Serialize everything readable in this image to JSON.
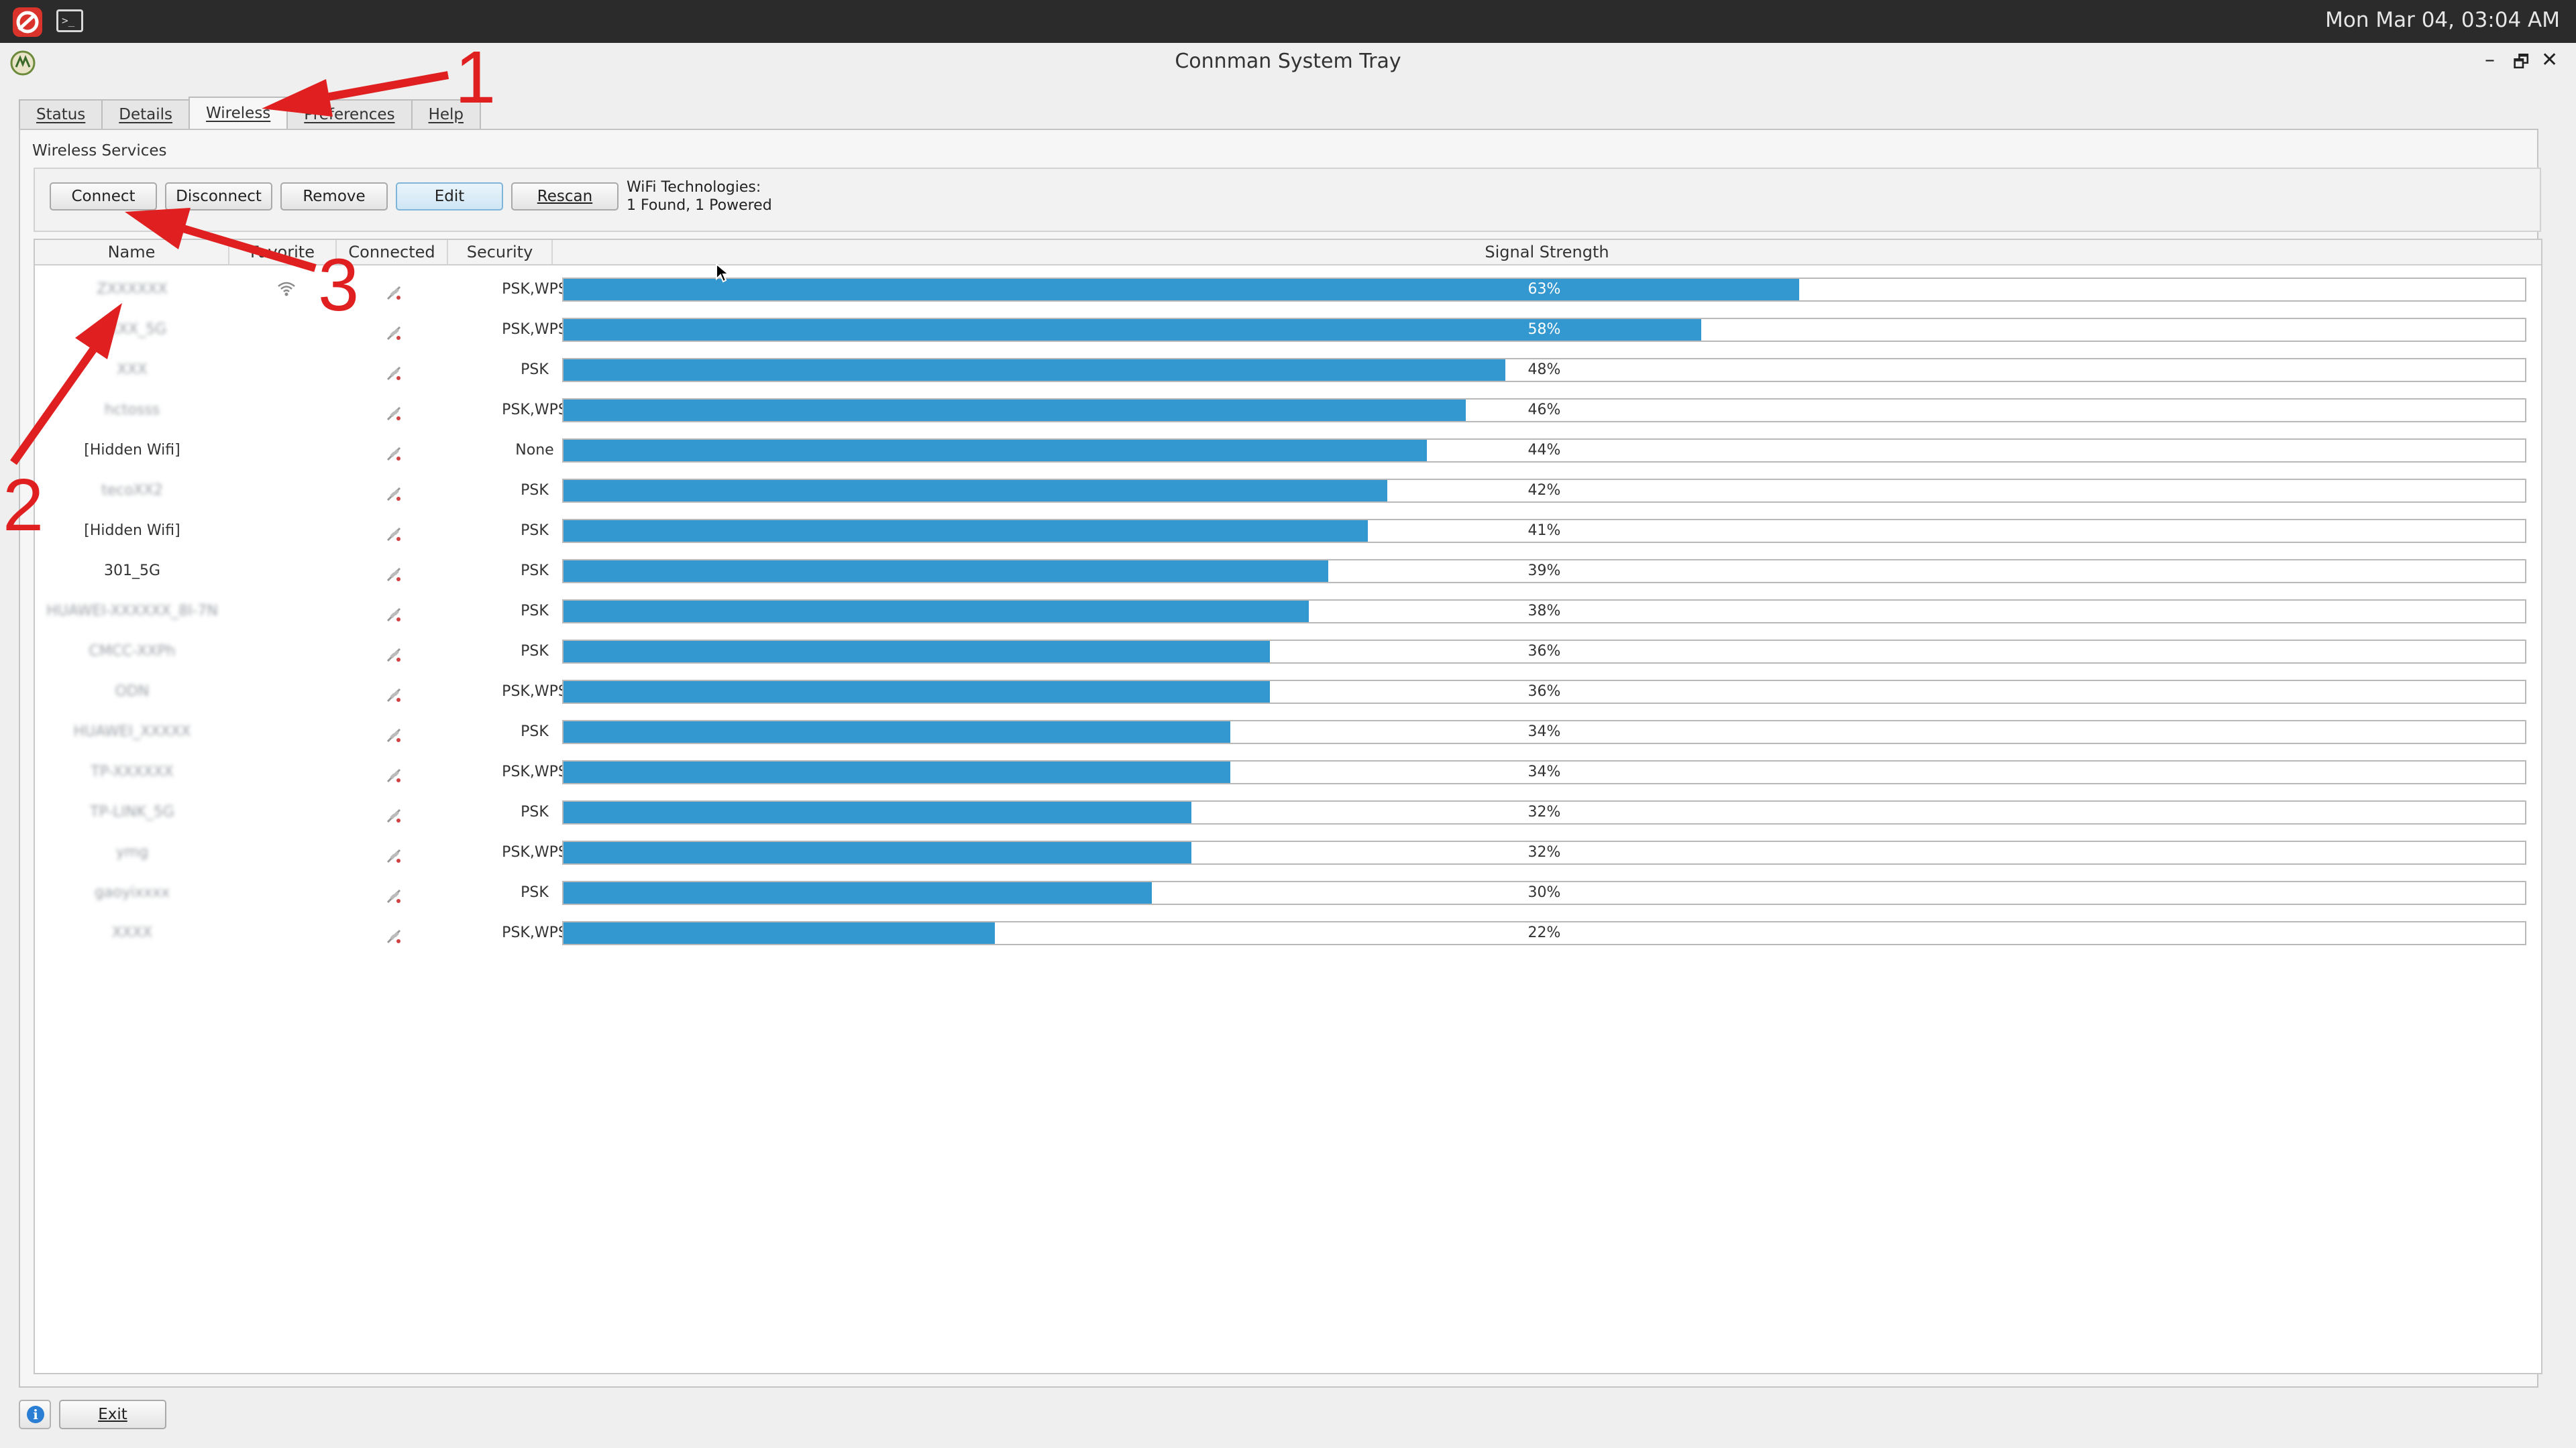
{
  "topbar": {
    "clock": "Mon Mar 04, 03:04 AM"
  },
  "window": {
    "title": "Connman System Tray",
    "controls": {
      "minimize": "–",
      "restore": "🗗",
      "close": "✕"
    }
  },
  "tabs": [
    {
      "label": "Status"
    },
    {
      "label": "Details"
    },
    {
      "label": "Wireless"
    },
    {
      "label": "Preferences"
    },
    {
      "label": "Help"
    }
  ],
  "wireless": {
    "section_label": "Wireless Services",
    "buttons": {
      "connect": "Connect",
      "disconnect": "Disconnect",
      "remove": "Remove",
      "edit": "Edit",
      "rescan": "Rescan"
    },
    "wifi_tech_line1": "WiFi Technologies:",
    "wifi_tech_line2": "1 Found, 1 Powered",
    "columns": {
      "name": "Name",
      "favorite": "Favorite",
      "connected": "Connected",
      "security": "Security",
      "signal": "Signal Strength"
    },
    "rows": [
      {
        "name": "ZXXXXXX",
        "blur": true,
        "favorite": true,
        "security": "PSK,WPS",
        "signal": 63,
        "signal_label": "63%"
      },
      {
        "name": "ZXXX_5G",
        "blur": true,
        "favorite": false,
        "security": "PSK,WPS",
        "signal": 58,
        "signal_label": "58%"
      },
      {
        "name": "XXX",
        "blur": true,
        "favorite": false,
        "security": "PSK",
        "signal": 48,
        "signal_label": "48%"
      },
      {
        "name": "hctosss",
        "blur": true,
        "favorite": false,
        "security": "PSK,WPS",
        "signal": 46,
        "signal_label": "46%"
      },
      {
        "name": "[Hidden Wifi]",
        "blur": false,
        "favorite": false,
        "security": "None",
        "signal": 44,
        "signal_label": "44%"
      },
      {
        "name": "tecoXX2",
        "blur": true,
        "favorite": false,
        "security": "PSK",
        "signal": 42,
        "signal_label": "42%"
      },
      {
        "name": "[Hidden Wifi]",
        "blur": false,
        "favorite": false,
        "security": "PSK",
        "signal": 41,
        "signal_label": "41%"
      },
      {
        "name": "301_5G",
        "blur": false,
        "favorite": false,
        "security": "PSK",
        "signal": 39,
        "signal_label": "39%"
      },
      {
        "name": "HUAWEI-XXXXXX_8I-7N",
        "blur": true,
        "favorite": false,
        "security": "PSK",
        "signal": 38,
        "signal_label": "38%"
      },
      {
        "name": "CMCC-XXPh",
        "blur": true,
        "favorite": false,
        "security": "PSK",
        "signal": 36,
        "signal_label": "36%"
      },
      {
        "name": "ODN",
        "blur": true,
        "favorite": false,
        "security": "PSK,WPS",
        "signal": 36,
        "signal_label": "36%"
      },
      {
        "name": "HUAWEI_XXXXX",
        "blur": true,
        "favorite": false,
        "security": "PSK",
        "signal": 34,
        "signal_label": "34%"
      },
      {
        "name": "TP-XXXXXX",
        "blur": true,
        "favorite": false,
        "security": "PSK,WPS",
        "signal": 34,
        "signal_label": "34%"
      },
      {
        "name": "TP-LINK_5G",
        "blur": true,
        "favorite": false,
        "security": "PSK",
        "signal": 32,
        "signal_label": "32%"
      },
      {
        "name": "ymg",
        "blur": true,
        "favorite": false,
        "security": "PSK,WPS",
        "signal": 32,
        "signal_label": "32%"
      },
      {
        "name": "gaoyixxxx",
        "blur": true,
        "favorite": false,
        "security": "PSK",
        "signal": 30,
        "signal_label": "30%"
      },
      {
        "name": "XXXX",
        "blur": true,
        "favorite": false,
        "security": "PSK,WPS",
        "signal": 22,
        "signal_label": "22%"
      }
    ]
  },
  "bottom": {
    "info_glyph": "i",
    "exit_label": "Exit"
  },
  "annotations": {
    "n1": "1",
    "n2": "2",
    "n3": "3"
  },
  "colors": {
    "bar_fill": "#3498d0",
    "annotation_red": "#e02020"
  }
}
